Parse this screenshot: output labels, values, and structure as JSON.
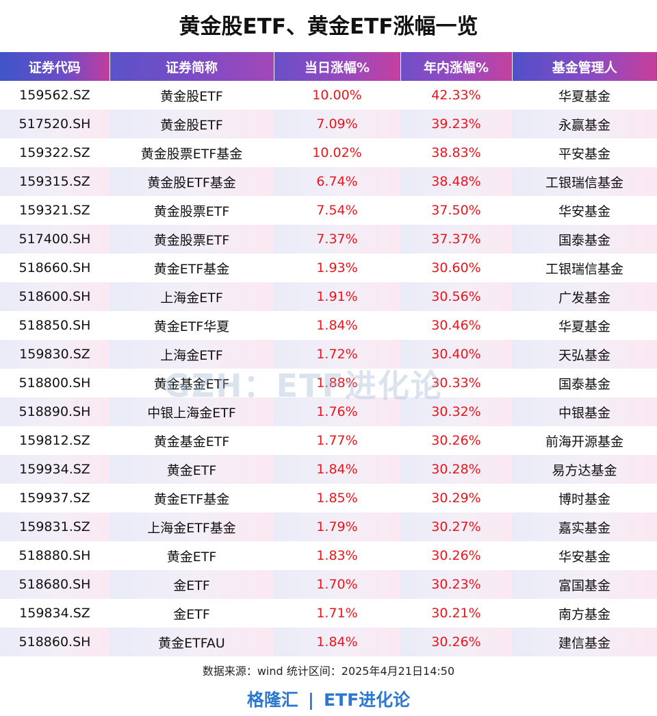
{
  "title": "黄金股ETF、黄金ETF涨幅一览",
  "table": {
    "columns": [
      "证券代码",
      "证券简称",
      "当日涨幅%",
      "年内涨幅%",
      "基金管理人"
    ],
    "rows": [
      [
        "159562.SZ",
        "黄金股ETF",
        "10.00%",
        "42.33%",
        "华夏基金"
      ],
      [
        "517520.SH",
        "黄金股ETF",
        "7.09%",
        "39.23%",
        "永赢基金"
      ],
      [
        "159322.SZ",
        "黄金股票ETF基金",
        "10.02%",
        "38.83%",
        "平安基金"
      ],
      [
        "159315.SZ",
        "黄金股ETF基金",
        "6.74%",
        "38.48%",
        "工银瑞信基金"
      ],
      [
        "159321.SZ",
        "黄金股票ETF",
        "7.54%",
        "37.50%",
        "华安基金"
      ],
      [
        "517400.SH",
        "黄金股票ETF",
        "7.37%",
        "37.37%",
        "国泰基金"
      ],
      [
        "518660.SH",
        "黄金ETF基金",
        "1.93%",
        "30.60%",
        "工银瑞信基金"
      ],
      [
        "518600.SH",
        "上海金ETF",
        "1.91%",
        "30.56%",
        "广发基金"
      ],
      [
        "518850.SH",
        "黄金ETF华夏",
        "1.84%",
        "30.46%",
        "华夏基金"
      ],
      [
        "159830.SZ",
        "上海金ETF",
        "1.72%",
        "30.40%",
        "天弘基金"
      ],
      [
        "518800.SH",
        "黄金基金ETF",
        "1.88%",
        "30.33%",
        "国泰基金"
      ],
      [
        "518890.SH",
        "中银上海金ETF",
        "1.76%",
        "30.32%",
        "中银基金"
      ],
      [
        "159812.SZ",
        "黄金基金ETF",
        "1.77%",
        "30.26%",
        "前海开源基金"
      ],
      [
        "159934.SZ",
        "黄金ETF",
        "1.84%",
        "30.28%",
        "易方达基金"
      ],
      [
        "159937.SZ",
        "黄金ETF基金",
        "1.85%",
        "30.29%",
        "博时基金"
      ],
      [
        "159831.SZ",
        "上海金ETF基金",
        "1.79%",
        "30.27%",
        "嘉实基金"
      ],
      [
        "518880.SH",
        "黄金ETF",
        "1.83%",
        "30.26%",
        "华安基金"
      ],
      [
        "518680.SH",
        "金ETF",
        "1.70%",
        "30.23%",
        "富国基金"
      ],
      [
        "159834.SZ",
        "金ETF",
        "1.71%",
        "30.21%",
        "南方基金"
      ],
      [
        "518860.SH",
        "黄金ETFAU",
        "1.84%",
        "30.26%",
        "建信基金"
      ]
    ]
  },
  "watermark": "GZH：ETF进化论",
  "source_note": "数据来源：wind   统计区间：2025年4月21日14:50",
  "footer": {
    "left": "格隆汇",
    "separator": "|",
    "right": "ETF进化论"
  },
  "colors": {
    "positive_change": "#e8151c",
    "brand_blue": "#2b78d1"
  }
}
